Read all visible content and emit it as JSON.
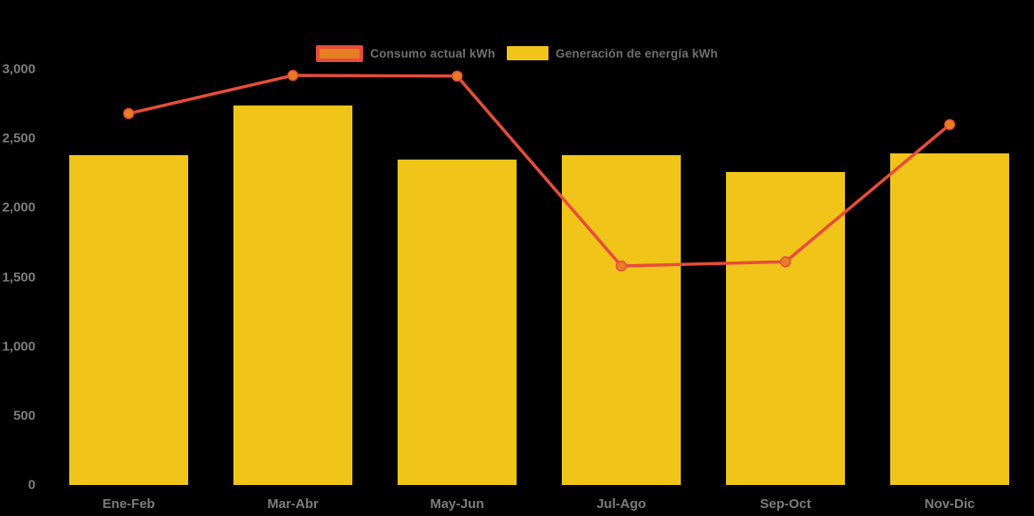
{
  "colors": {
    "background": "#000000",
    "bar": "#F0C419",
    "line": "#E74C3C",
    "point": "#E67E22",
    "axis_text": "#7D7D7D",
    "legend_text": "#6F6F6F"
  },
  "legend": {
    "items": [
      {
        "label": "Consumo actual kWh",
        "series": "line"
      },
      {
        "label": "Generación de energía kWh",
        "series": "bar"
      }
    ]
  },
  "chart_data": {
    "type": "bar",
    "subtype": "combo-bar-line",
    "categories": [
      "Ene-Feb",
      "Mar-Abr",
      "May-Jun",
      "Jul-Ago",
      "Sep-Oct",
      "Nov-Dic"
    ],
    "series": [
      {
        "name": "Consumo actual kWh",
        "type": "line",
        "color": "#E74C3C",
        "point_color": "#E67E22",
        "values": [
          2680,
          2955,
          2950,
          1580,
          1610,
          2600
        ]
      },
      {
        "name": "Generación de energía kWh",
        "type": "bar",
        "color": "#F0C419",
        "values": [
          2380,
          2740,
          2350,
          2380,
          2260,
          2390
        ]
      }
    ],
    "title": "",
    "xlabel": "",
    "ylabel": "",
    "ylim": [
      0,
      3000
    ],
    "yticks": [
      0,
      500,
      1000,
      1500,
      2000,
      2500,
      3000
    ],
    "ytick_labels": [
      "0",
      "500",
      "1,000",
      "1,500",
      "2,000",
      "2,500",
      "3,000"
    ],
    "grid": false,
    "legend_position": "top-center"
  }
}
